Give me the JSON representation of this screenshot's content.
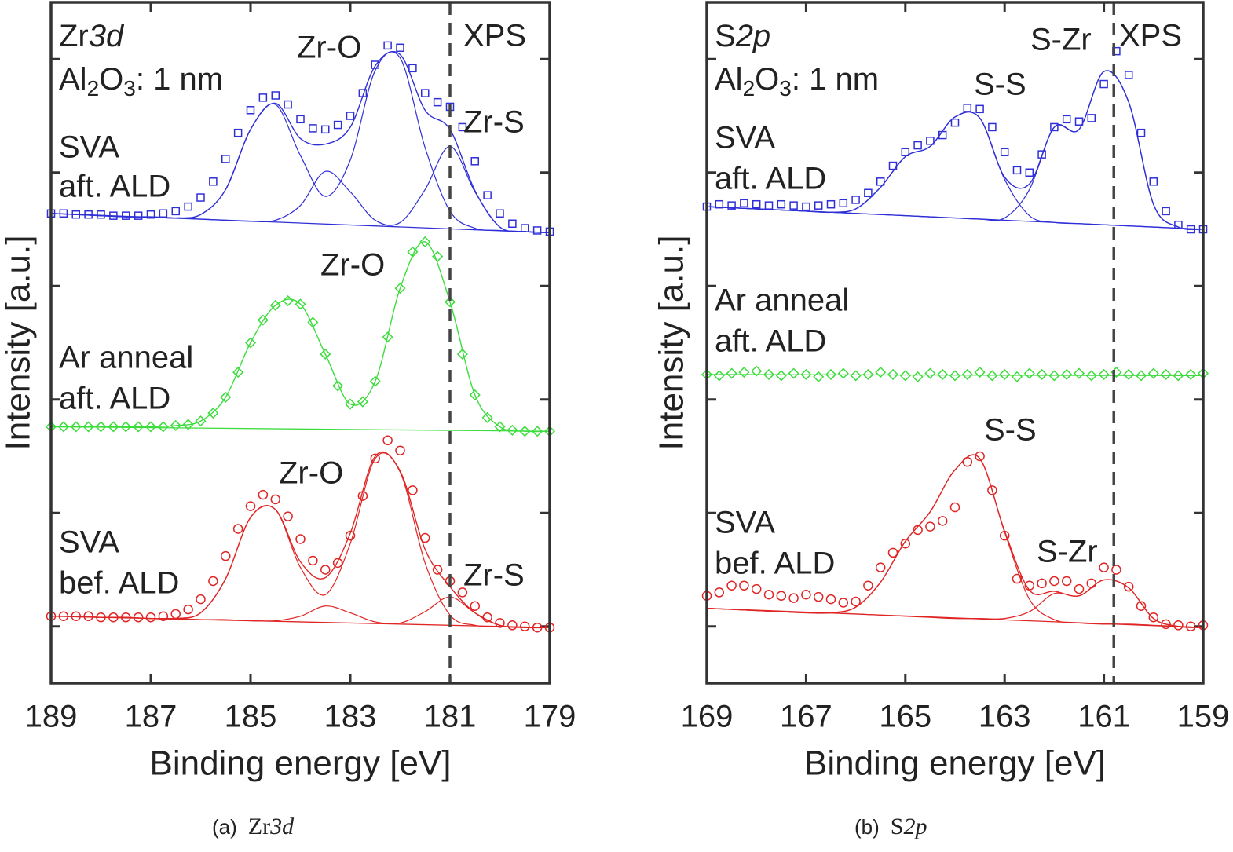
{
  "chart_data": [
    {
      "type": "scatter",
      "label": {
        "element": "Zr",
        "orbital": "3d"
      },
      "oxide": [
        "Al",
        "2",
        "O",
        "3",
        ": 1 nm"
      ],
      "method": "XPS",
      "caption": {
        "label": "(a)",
        "element": "Zr",
        "orbital": "3d"
      },
      "xlabel": "Binding energy [eV]",
      "ylabel": "Intensity [a.u.]",
      "xlim": [
        189,
        179
      ],
      "xticks": [
        189,
        187,
        185,
        183,
        181,
        179
      ],
      "ylim": [
        -0.5,
        5.5
      ],
      "yticks": [
        0,
        1,
        2,
        3,
        4,
        5
      ],
      "reference_line": 181,
      "x": [
        189,
        188.75,
        188.5,
        188.25,
        188,
        187.75,
        187.5,
        187.25,
        187,
        186.75,
        186.5,
        186.25,
        186,
        185.75,
        185.5,
        185.25,
        185,
        184.75,
        184.5,
        184.25,
        184,
        183.75,
        183.5,
        183.25,
        183,
        182.75,
        182.5,
        182.25,
        182,
        181.75,
        181.5,
        181.25,
        181,
        180.75,
        180.5,
        180.25,
        180,
        179.75,
        179.5,
        179.25,
        179
      ],
      "fit_x": [
        189,
        188.5,
        188,
        187.5,
        187,
        186.5,
        186,
        185.5,
        185,
        184.5,
        184,
        183.5,
        183,
        182.5,
        182,
        181.5,
        181,
        180.5,
        180,
        179.5,
        179
      ],
      "background_x": [
        189,
        179
      ],
      "series": [
        {
          "label": [
            "SVA",
            "aft. ALD"
          ],
          "color": "#2f2fd8",
          "marker": "square",
          "values": [
            3.64,
            3.64,
            3.63,
            3.63,
            3.63,
            3.62,
            3.62,
            3.62,
            3.63,
            3.64,
            3.66,
            3.7,
            3.78,
            3.92,
            4.12,
            4.35,
            4.55,
            4.66,
            4.68,
            4.6,
            4.47,
            4.39,
            4.38,
            4.42,
            4.5,
            4.7,
            4.95,
            5.12,
            5.1,
            4.92,
            4.7,
            4.62,
            4.58,
            4.4,
            4.1,
            3.8,
            3.64,
            3.55,
            3.51,
            3.49,
            3.48
          ],
          "fit": [
            3.64,
            3.63,
            3.62,
            3.61,
            3.61,
            3.6,
            3.63,
            3.85,
            4.38,
            4.61,
            4.3,
            4.25,
            4.4,
            4.94,
            5.04,
            4.55,
            4.38,
            3.84,
            3.52,
            3.48,
            3.47
          ],
          "components": [
            [
              3.64,
              3.63,
              3.62,
              3.61,
              3.61,
              3.6,
              3.63,
              3.85,
              4.38,
              4.6,
              4.15,
              3.79,
              4.11,
              4.9,
              5.01,
              4.22,
              3.66,
              3.51,
              3.49,
              3.48,
              3.47
            ],
            [
              3.64,
              3.63,
              3.62,
              3.61,
              3.61,
              3.6,
              3.59,
              3.58,
              3.57,
              3.58,
              3.71,
              4.01,
              3.83,
              3.58,
              3.56,
              3.85,
              4.23,
              3.83,
              3.52,
              3.48,
              3.47
            ]
          ],
          "background": [
            3.64,
            3.47
          ]
        },
        {
          "label": [
            "Ar anneal",
            "aft. ALD"
          ],
          "color": "#3ddc3d",
          "marker": "diamond",
          "values": [
            1.76,
            1.76,
            1.76,
            1.76,
            1.76,
            1.76,
            1.76,
            1.76,
            1.76,
            1.76,
            1.77,
            1.78,
            1.81,
            1.88,
            2.02,
            2.24,
            2.5,
            2.7,
            2.83,
            2.87,
            2.84,
            2.68,
            2.4,
            2.12,
            1.96,
            1.98,
            2.16,
            2.55,
            2.98,
            3.3,
            3.39,
            3.26,
            2.86,
            2.4,
            2.04,
            1.84,
            1.76,
            1.73,
            1.72,
            1.72,
            1.72
          ],
          "fit": [
            1.76,
            1.76,
            1.76,
            1.76,
            1.76,
            1.77,
            1.81,
            2.02,
            2.5,
            2.83,
            2.84,
            2.4,
            1.96,
            2.16,
            2.98,
            3.39,
            2.86,
            2.04,
            1.76,
            1.72,
            1.72
          ],
          "background": [
            1.76,
            1.72
          ]
        },
        {
          "label": [
            "SVA",
            "bef. ALD"
          ],
          "color": "#e02525",
          "marker": "circle",
          "values": [
            0.09,
            0.09,
            0.09,
            0.09,
            0.08,
            0.08,
            0.08,
            0.08,
            0.08,
            0.09,
            0.11,
            0.15,
            0.24,
            0.4,
            0.62,
            0.86,
            1.06,
            1.16,
            1.12,
            0.97,
            0.77,
            0.58,
            0.5,
            0.56,
            0.8,
            1.15,
            1.48,
            1.64,
            1.55,
            1.2,
            0.78,
            0.5,
            0.4,
            0.3,
            0.18,
            0.08,
            0.03,
            0.01,
            0.0,
            -0.01,
            -0.01
          ],
          "fit": [
            0.09,
            0.09,
            0.08,
            0.08,
            0.07,
            0.07,
            0.12,
            0.42,
            0.96,
            1.03,
            0.57,
            0.43,
            0.82,
            1.5,
            1.37,
            0.68,
            0.35,
            0.12,
            0.01,
            -0.01,
            -0.01
          ],
          "components": [
            [
              0.09,
              0.09,
              0.08,
              0.08,
              0.07,
              0.07,
              0.12,
              0.42,
              0.96,
              1.03,
              0.52,
              0.28,
              0.73,
              1.48,
              1.36,
              0.56,
              0.1,
              0.01,
              0,
              -0.01,
              -0.01
            ],
            [
              0.09,
              0.09,
              0.08,
              0.08,
              0.07,
              0.07,
              0.06,
              0.06,
              0.05,
              0.05,
              0.09,
              0.18,
              0.12,
              0.04,
              0.03,
              0.13,
              0.26,
              0.12,
              0.01,
              -0.01,
              -0.01
            ]
          ],
          "background": [
            0.09,
            -0.01
          ]
        }
      ],
      "peaks": [
        "Zr-O",
        "Zr-S",
        "Zr-O",
        "Zr-O",
        "Zr-S"
      ]
    },
    {
      "type": "scatter",
      "label": {
        "element": "S",
        "orbital": "2p"
      },
      "oxide": [
        "Al",
        "2",
        "O",
        "3",
        ": 1 nm"
      ],
      "method": "XPS",
      "caption": {
        "label": "(b)",
        "element": "S",
        "orbital": "2p"
      },
      "xlabel": "Binding energy [eV]",
      "ylabel": "Intensity [a.u.]",
      "xlim": [
        169,
        159
      ],
      "xticks": [
        169,
        167,
        165,
        163,
        161,
        159
      ],
      "ylim": [
        -0.5,
        5.5
      ],
      "yticks": [
        0,
        1,
        2,
        3,
        4,
        5
      ],
      "reference_line": 160.8,
      "x": [
        169,
        168.75,
        168.5,
        168.25,
        168,
        167.75,
        167.5,
        167.25,
        167,
        166.75,
        166.5,
        166.25,
        166,
        165.75,
        165.5,
        165.25,
        165,
        164.75,
        164.5,
        164.25,
        164,
        163.75,
        163.5,
        163.25,
        163,
        162.75,
        162.5,
        162.25,
        162,
        161.75,
        161.5,
        161.25,
        161,
        160.75,
        160.5,
        160.25,
        160,
        159.75,
        159.5,
        159.25,
        159
      ],
      "fit_x": [
        169,
        168.5,
        168,
        167.5,
        167,
        166.5,
        166,
        165.5,
        165,
        164.5,
        164,
        163.5,
        163,
        162.5,
        162,
        161.5,
        161,
        160.5,
        160,
        159.5,
        159
      ],
      "background_x": [
        169,
        159
      ],
      "series": [
        {
          "label": [
            "SVA",
            "aft. ALD"
          ],
          "color": "#2f2fd8",
          "marker": "square",
          "values": [
            3.7,
            3.72,
            3.71,
            3.73,
            3.72,
            3.71,
            3.72,
            3.71,
            3.7,
            3.71,
            3.72,
            3.73,
            3.76,
            3.82,
            3.92,
            4.06,
            4.18,
            4.24,
            4.28,
            4.33,
            4.44,
            4.57,
            4.56,
            4.4,
            4.18,
            4.02,
            4.0,
            4.16,
            4.4,
            4.47,
            4.45,
            4.48,
            4.78,
            5.07,
            4.86,
            4.35,
            3.92,
            3.66,
            3.54,
            3.5,
            3.5
          ],
          "fit": [
            3.7,
            3.69,
            3.68,
            3.67,
            3.66,
            3.65,
            3.68,
            3.87,
            4.14,
            4.23,
            4.49,
            4.48,
            3.96,
            3.9,
            4.4,
            4.38,
            4.89,
            4.62,
            3.72,
            3.52,
            3.5
          ],
          "components": [
            [
              3.7,
              3.69,
              3.68,
              3.67,
              3.66,
              3.65,
              3.68,
              3.87,
              4.14,
              4.23,
              4.49,
              4.48,
              3.94,
              3.62,
              3.56,
              3.55,
              3.54,
              3.53,
              3.52,
              3.51,
              3.5
            ],
            [
              3.7,
              3.69,
              3.68,
              3.67,
              3.66,
              3.65,
              3.64,
              3.63,
              3.62,
              3.61,
              3.6,
              3.59,
              3.6,
              3.85,
              4.4,
              4.38,
              4.89,
              4.62,
              3.72,
              3.52,
              3.5
            ]
          ],
          "background": [
            3.7,
            3.5
          ]
        },
        {
          "label": [
            "Ar anneal",
            "aft. ALD"
          ],
          "color": "#3ddc3d",
          "marker": "diamond",
          "values": [
            2.22,
            2.21,
            2.23,
            2.24,
            2.25,
            2.22,
            2.21,
            2.23,
            2.22,
            2.2,
            2.22,
            2.23,
            2.21,
            2.22,
            2.24,
            2.22,
            2.21,
            2.2,
            2.23,
            2.22,
            2.21,
            2.22,
            2.24,
            2.21,
            2.22,
            2.2,
            2.23,
            2.22,
            2.21,
            2.22,
            2.23,
            2.21,
            2.22,
            2.24,
            2.22,
            2.21,
            2.23,
            2.22,
            2.21,
            2.22,
            2.23
          ],
          "background": [
            2.22,
            2.21
          ]
        },
        {
          "label": [
            "SVA",
            "bef. ALD"
          ],
          "color": "#e02525",
          "marker": "circle",
          "values": [
            0.27,
            0.3,
            0.36,
            0.36,
            0.33,
            0.28,
            0.27,
            0.25,
            0.28,
            0.26,
            0.24,
            0.21,
            0.22,
            0.36,
            0.52,
            0.65,
            0.73,
            0.85,
            0.88,
            0.93,
            1.05,
            1.45,
            1.5,
            1.2,
            0.8,
            0.42,
            0.36,
            0.38,
            0.4,
            0.4,
            0.33,
            0.38,
            0.52,
            0.5,
            0.35,
            0.18,
            0.08,
            0.02,
            0.01,
            0.0,
            0.01
          ],
          "fit": [
            0.16,
            0.15,
            0.14,
            0.13,
            0.12,
            0.12,
            0.17,
            0.39,
            0.75,
            1.01,
            1.38,
            1.48,
            0.84,
            0.32,
            0.31,
            0.27,
            0.41,
            0.34,
            0.07,
            0.0,
            -0.01
          ],
          "components": [
            [
              0.16,
              0.15,
              0.14,
              0.13,
              0.12,
              0.12,
              0.17,
              0.39,
              0.75,
              1.01,
              1.38,
              1.48,
              0.83,
              0.24,
              0.06,
              0.03,
              0.02,
              0.02,
              0.01,
              0.0,
              -0.01
            ],
            [
              0.16,
              0.15,
              0.14,
              0.13,
              0.12,
              0.12,
              0.11,
              0.1,
              0.09,
              0.08,
              0.07,
              0.07,
              0.07,
              0.13,
              0.29,
              0.27,
              0.41,
              0.34,
              0.07,
              0.0,
              -0.01
            ]
          ],
          "background": [
            0.16,
            -0.01
          ]
        }
      ],
      "peaks": [
        "S-S",
        "S-Zr",
        "S-S",
        "S-Zr"
      ]
    }
  ]
}
